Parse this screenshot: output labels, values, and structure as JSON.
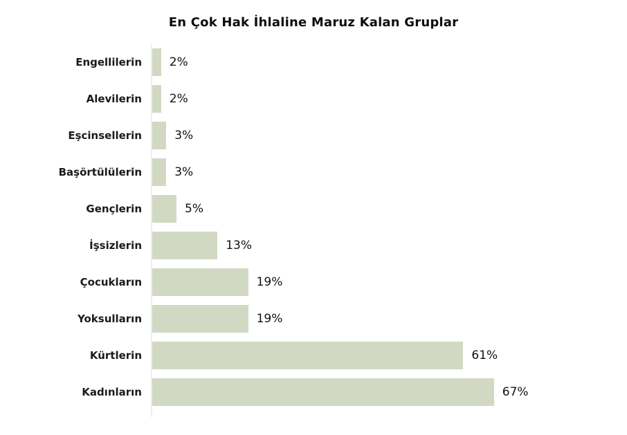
{
  "chart_data": {
    "type": "bar",
    "orientation": "horizontal",
    "title": "En Çok Hak İhlaline Maruz Kalan Gruplar",
    "categories": [
      "Engellilerin",
      "Alevilerin",
      "Eşcinsellerin",
      "Başörtülülerin",
      "Gençlerin",
      "İşsizlerin",
      "Çocukların",
      "Yoksulların",
      "Kürtlerin",
      "Kadınların"
    ],
    "values": [
      2,
      2,
      3,
      3,
      5,
      13,
      19,
      19,
      61,
      67
    ],
    "value_labels": [
      "2%",
      "2%",
      "3%",
      "3%",
      "5%",
      "13%",
      "19%",
      "19%",
      "61%",
      "67%"
    ],
    "xlabel": "",
    "ylabel": "",
    "xlim": [
      0,
      70
    ],
    "grid": false,
    "legend": false,
    "bar_color": "#d1d9c3",
    "title_color": "#0d0d0d",
    "label_color": "#1a1a1a",
    "value_color": "#111111",
    "axis_line_color": "#ededed",
    "background": "#ffffff"
  }
}
